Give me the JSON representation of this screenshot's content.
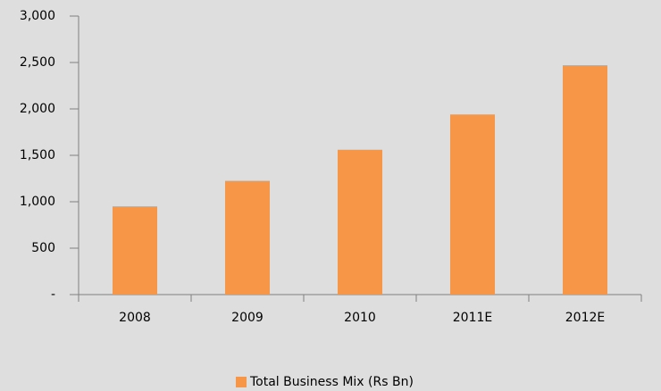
{
  "chart_data": {
    "type": "bar",
    "categories": [
      "2008",
      "2009",
      "2010",
      "2011E",
      "2012E"
    ],
    "series": [
      {
        "name": "Total Business Mix (Rs Bn)",
        "color": "#f79646",
        "values": [
          950,
          1225,
          1560,
          1940,
          2470
        ]
      }
    ],
    "ylim": [
      0,
      3000
    ],
    "yticks": [
      {
        "value": 0,
        "label": "-"
      },
      500,
      {
        "value": 1000,
        "label": "1,000"
      },
      {
        "value": 1500,
        "label": "1,500"
      },
      {
        "value": 2000,
        "label": "2,000"
      },
      {
        "value": 2500,
        "label": "2,500"
      },
      {
        "value": 3000,
        "label": "3,000"
      }
    ],
    "grid": false,
    "legend": "bottom"
  }
}
